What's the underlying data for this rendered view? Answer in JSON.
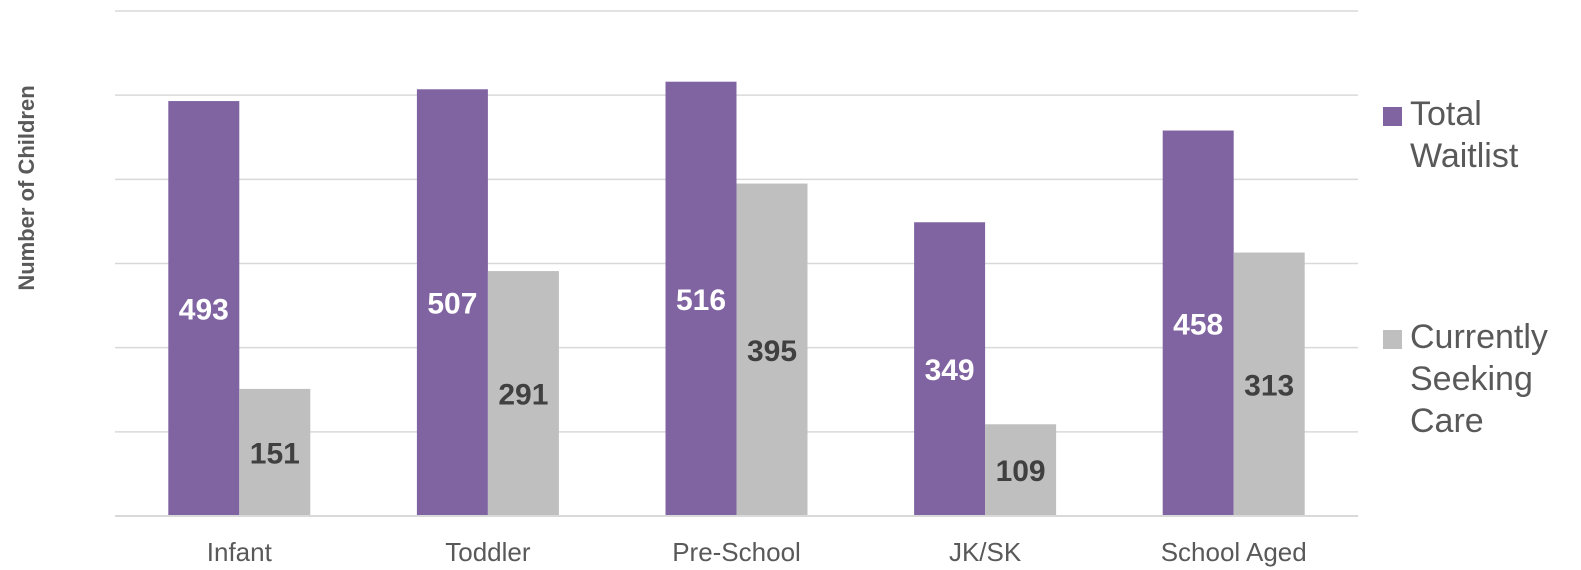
{
  "chart_data": {
    "type": "bar",
    "ylabel": "Number of Children",
    "xlabel": "",
    "categories": [
      "Infant",
      "Toddler",
      "Pre-School",
      "JK/SK",
      "School Aged"
    ],
    "ylim": [
      0,
      600
    ],
    "grid": true,
    "legend_position": "right",
    "series": [
      {
        "name": "Total Waitlist",
        "legend_lines": [
          "Total",
          "Waitlist"
        ],
        "color": "#8064A2",
        "label_color": "#ffffff",
        "values": [
          493,
          507,
          516,
          349,
          458
        ]
      },
      {
        "name": "Currently Seeking Care",
        "legend_lines": [
          "Currently",
          "Seeking",
          "Care"
        ],
        "color": "#BFBFBF",
        "label_color": "#404040",
        "values": [
          151,
          291,
          395,
          109,
          313
        ]
      }
    ]
  }
}
